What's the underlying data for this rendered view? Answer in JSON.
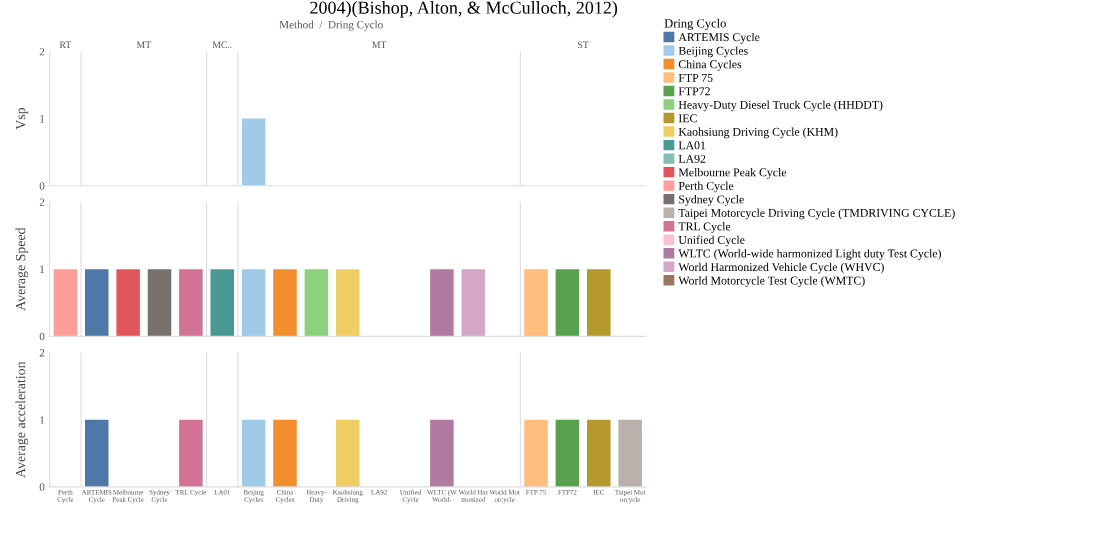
{
  "chart_data": [
    {
      "type": "bar",
      "title": "2004)(Bishop, Alton, & McCulloch, 2012)",
      "subtitle": "Method  /  Dring Cyclo",
      "ylabel": "Vsp",
      "legend": "right",
      "legend_title": "Dring Cyclo",
      "tick_labels": "y",
      "annotations": [
        "RT",
        "MT",
        "MC..",
        "MT",
        "ST"
      ],
      "categories": [
        null,
        null,
        null,
        null,
        null,
        null,
        null,
        null,
        null,
        null,
        null,
        null,
        null,
        null,
        null,
        null,
        null,
        null,
        null
      ],
      "ylim": [
        0,
        2
      ],
      "yticks": [
        0,
        1,
        2
      ],
      "series": [
        {
          "name": "ARTEMIS Cycle",
          "color": "#4e79a7",
          "values": [
            null,
            null,
            null,
            null,
            null,
            null,
            null,
            null,
            null,
            null,
            null,
            null,
            null,
            null,
            null,
            null,
            null,
            null,
            null
          ]
        },
        {
          "name": "Beijing Cycles",
          "color": "#a0cbe8",
          "values": [
            null,
            null,
            null,
            null,
            null,
            null,
            1,
            null,
            null,
            null,
            null,
            null,
            null,
            null,
            null,
            null,
            null,
            null,
            null
          ]
        },
        {
          "name": "China Cycles",
          "color": "#f28e2b",
          "values": [
            null,
            null,
            null,
            null,
            null,
            null,
            null,
            null,
            null,
            null,
            null,
            null,
            null,
            null,
            null,
            null,
            null,
            null,
            null
          ]
        },
        {
          "name": "FTP 75",
          "color": "#ffbe7d",
          "values": [
            null,
            null,
            null,
            null,
            null,
            null,
            null,
            null,
            null,
            null,
            null,
            null,
            null,
            null,
            null,
            null,
            null,
            null,
            null
          ]
        },
        {
          "name": "FTP72",
          "color": "#59a14f",
          "values": [
            null,
            null,
            null,
            null,
            null,
            null,
            null,
            null,
            null,
            null,
            null,
            null,
            null,
            null,
            null,
            null,
            null,
            null,
            null
          ]
        },
        {
          "name": "Heavy-Duty Diesel Truck Cycle (HHDDT)",
          "color": "#8cd17d",
          "values": [
            null,
            null,
            null,
            null,
            null,
            null,
            null,
            null,
            null,
            null,
            null,
            null,
            null,
            null,
            null,
            null,
            null,
            null,
            null
          ]
        },
        {
          "name": "IEC",
          "color": "#b6992d",
          "values": [
            null,
            null,
            null,
            null,
            null,
            null,
            null,
            null,
            null,
            null,
            null,
            null,
            null,
            null,
            null,
            null,
            null,
            null,
            null
          ]
        },
        {
          "name": "Kaohsiung Driving Cycle (KHM)",
          "color": "#f1ce63",
          "values": [
            null,
            null,
            null,
            null,
            null,
            null,
            null,
            null,
            null,
            null,
            null,
            null,
            null,
            null,
            null,
            null,
            null,
            null,
            null
          ]
        },
        {
          "name": "LA01",
          "color": "#499894",
          "values": [
            null,
            null,
            null,
            null,
            null,
            null,
            null,
            null,
            null,
            null,
            null,
            null,
            null,
            null,
            null,
            null,
            null,
            null,
            null
          ]
        },
        {
          "name": "LA92",
          "color": "#86bcb6",
          "values": [
            null,
            null,
            null,
            null,
            null,
            null,
            null,
            null,
            null,
            null,
            null,
            null,
            null,
            null,
            null,
            null,
            null,
            null,
            null
          ]
        },
        {
          "name": "Melbourne Peak Cycle",
          "color": "#e15759",
          "values": [
            null,
            null,
            null,
            null,
            null,
            null,
            null,
            null,
            null,
            null,
            null,
            null,
            null,
            null,
            null,
            null,
            null,
            null,
            null
          ]
        },
        {
          "name": "Perth Cycle",
          "color": "#ff9d9a",
          "values": [
            null,
            null,
            null,
            null,
            null,
            null,
            null,
            null,
            null,
            null,
            null,
            null,
            null,
            null,
            null,
            null,
            null,
            null,
            null
          ]
        },
        {
          "name": "Sydney Cycle",
          "color": "#79706e",
          "values": [
            null,
            null,
            null,
            null,
            null,
            null,
            null,
            null,
            null,
            null,
            null,
            null,
            null,
            null,
            null,
            null,
            null,
            null,
            null
          ]
        },
        {
          "name": "Taipei Motorcycle Driving Cycle (TMDRIVING CYCLE)",
          "color": "#bab0ac",
          "values": [
            null,
            null,
            null,
            null,
            null,
            null,
            null,
            null,
            null,
            null,
            null,
            null,
            null,
            null,
            null,
            null,
            null,
            null,
            null
          ]
        },
        {
          "name": "TRL Cycle",
          "color": "#d37295",
          "values": [
            null,
            null,
            null,
            null,
            null,
            null,
            null,
            null,
            null,
            null,
            null,
            null,
            null,
            null,
            null,
            null,
            null,
            null,
            null
          ]
        },
        {
          "name": "Unified Cycle",
          "color": "#fabfd2",
          "values": [
            null,
            null,
            null,
            null,
            null,
            null,
            null,
            null,
            null,
            null,
            null,
            null,
            null,
            null,
            null,
            null,
            null,
            null,
            null
          ]
        },
        {
          "name": "WLTC (World-wide harmonized Light duty Test Cycle)",
          "color": "#b07aa1",
          "values": [
            null,
            null,
            null,
            null,
            null,
            null,
            null,
            null,
            null,
            null,
            null,
            null,
            null,
            null,
            null,
            null,
            null,
            null,
            null
          ]
        },
        {
          "name": "World Harmonized Vehicle Cycle (WHVC)",
          "color": "#d4a6c8",
          "values": [
            null,
            null,
            null,
            null,
            null,
            null,
            null,
            null,
            null,
            null,
            null,
            null,
            null,
            null,
            null,
            null,
            null,
            null,
            null
          ]
        },
        {
          "name": "World Motorcycle Test Cycle (WMTC)",
          "color": "#9d7660",
          "values": [
            null,
            null,
            null,
            null,
            null,
            null,
            null,
            null,
            null,
            null,
            null,
            null,
            null,
            null,
            null,
            null,
            null,
            null,
            null
          ]
        }
      ]
    },
    {
      "type": "bar",
      "ylabel": "Average Speed",
      "tick_labels": "y",
      "categories": [
        null,
        null,
        null,
        null,
        null,
        null,
        null,
        null,
        null,
        null,
        null,
        null,
        null,
        null,
        null,
        null,
        null,
        null,
        null
      ],
      "ylim": [
        0,
        2
      ],
      "yticks": [
        0,
        1,
        2
      ],
      "values": [
        1,
        1,
        1,
        1,
        1,
        1,
        1,
        1,
        1,
        1,
        null,
        null,
        1,
        1,
        null,
        1,
        1,
        1,
        null
      ],
      "colors": [
        "#ff9d9a",
        "#4e79a7",
        "#e15759",
        "#79706e",
        "#d37295",
        "#499894",
        "#a0cbe8",
        "#f28e2b",
        "#8cd17d",
        "#f1ce63",
        "#86bcb6",
        "#fabfd2",
        "#b07aa1",
        "#d4a6c8",
        "#9d7660",
        "#ffbe7d",
        "#59a14f",
        "#b6992d",
        "#bab0ac"
      ]
    },
    {
      "type": "bar",
      "ylabel": "Average acceleration",
      "categories": [
        "Perth\nCycle",
        "ARTEMIS\nCycle",
        "Melbourne\nPeak Cycle",
        "Sydney\nCycle",
        "TRL Cycle",
        "LA01",
        "Beijing\nCycles",
        "China\nCycles",
        "Heavy-\nDuty",
        "Kaohsiung\nDriving",
        "LA92",
        "Unified\nCycle",
        "WLTC (W\nWorld-",
        "World Har\nmonized",
        "World Mot\norcycle",
        "FTP 75",
        "FTP72",
        "IEC",
        "Taipei Mot\norcycle"
      ],
      "ylim": [
        0,
        2
      ],
      "yticks": [
        0,
        1,
        2
      ],
      "values": [
        null,
        1,
        null,
        null,
        1,
        null,
        1,
        1,
        null,
        1,
        null,
        null,
        1,
        null,
        null,
        1,
        1,
        1,
        1
      ],
      "colors": [
        "#ff9d9a",
        "#4e79a7",
        "#e15759",
        "#79706e",
        "#d37295",
        "#499894",
        "#a0cbe8",
        "#f28e2b",
        "#8cd17d",
        "#f1ce63",
        "#86bcb6",
        "#fabfd2",
        "#b07aa1",
        "#d4a6c8",
        "#9d7660",
        "#ffbe7d",
        "#59a14f",
        "#b6992d",
        "#bab0ac"
      ]
    }
  ]
}
